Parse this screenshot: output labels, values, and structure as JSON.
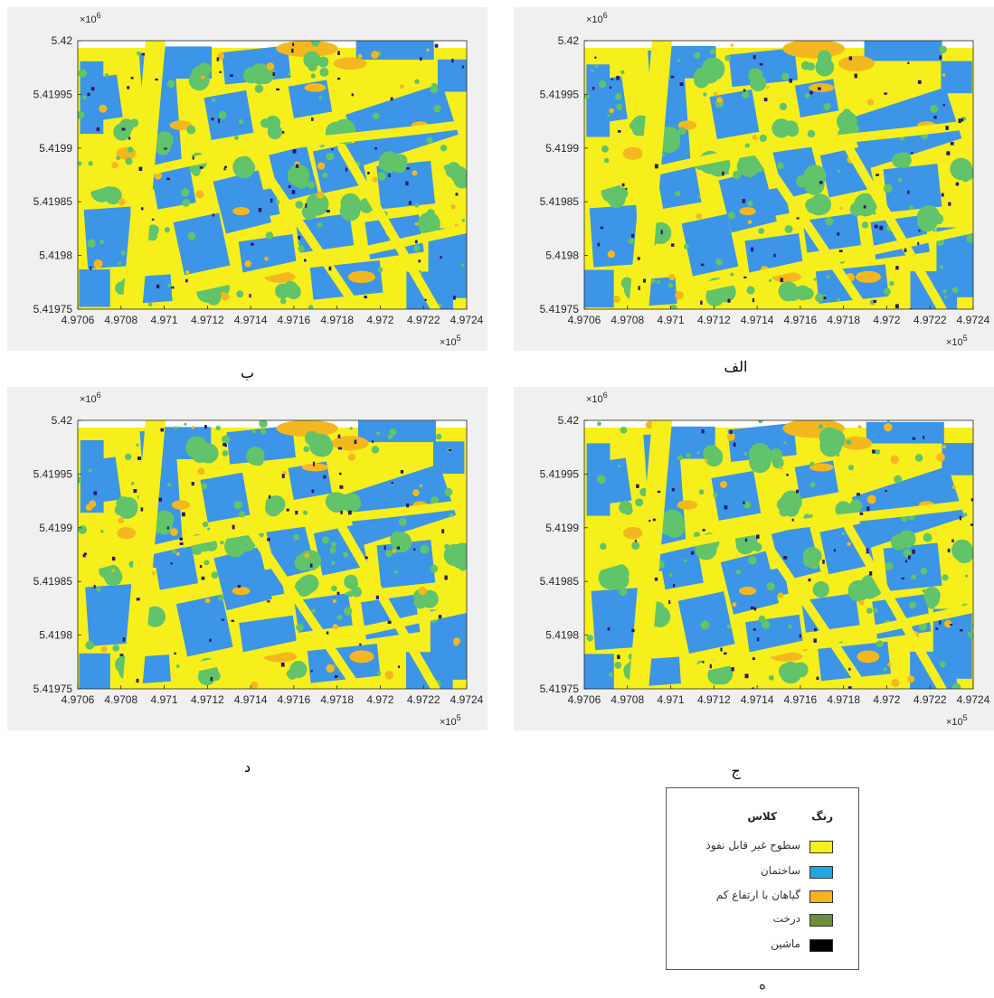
{
  "colors": {
    "impervious": "#f7ef1c",
    "building": "#3c95e6",
    "low_vegetation": "#f3b820",
    "tree": "#61c36a",
    "car": "#2a1a6a",
    "panel_bg": "#f0f0f0"
  },
  "panels": [
    {
      "id": "alef",
      "caption": "الف",
      "variant": 0
    },
    {
      "id": "be",
      "caption": "ب",
      "variant": 1
    },
    {
      "id": "jim",
      "caption": "ج",
      "variant": 2
    },
    {
      "id": "dal",
      "caption": "د",
      "variant": 3
    }
  ],
  "axes": {
    "x_ticks": [
      "4.9706",
      "4.9708",
      "4.971",
      "4.9712",
      "4.9714",
      "4.9716",
      "4.9718",
      "4.972",
      "4.9722",
      "4.9724"
    ],
    "y_ticks": [
      "5.42",
      "5.41995",
      "5.4199",
      "5.41985",
      "5.4198",
      "5.41975"
    ],
    "x_exponent_base": "×10",
    "x_exponent_power": "5",
    "y_exponent_base": "×10",
    "y_exponent_power": "6"
  },
  "legend": {
    "color_header": "رنگ",
    "class_header": "کلاس",
    "items": [
      {
        "label": "سطوح غیر قابل نفوذ",
        "color": "#f7ef1c"
      },
      {
        "label": "ساختمان",
        "color": "#1fa8e0"
      },
      {
        "label": "گیاهان با ارتفاع کم",
        "color": "#f5b41c"
      },
      {
        "label": "درخت",
        "color": "#6b8e3a"
      },
      {
        "label": "ماشین",
        "color": "#000000"
      }
    ],
    "caption": "ه"
  }
}
